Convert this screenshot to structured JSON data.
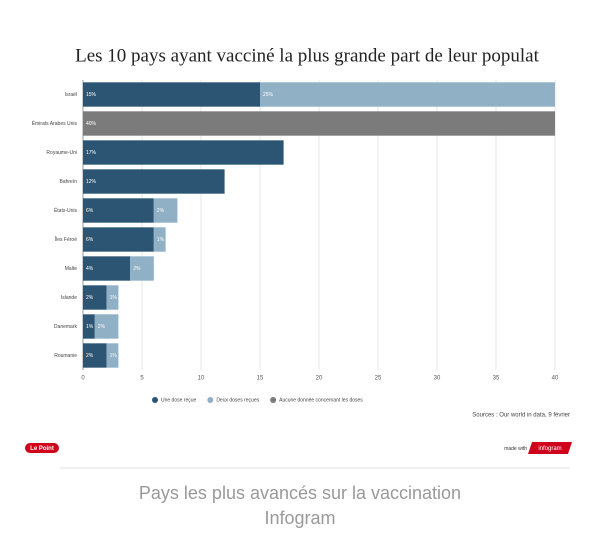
{
  "chart_data": {
    "type": "bar",
    "orientation": "horizontal",
    "stacked": true,
    "title": "Les 10 pays ayant vacciné la plus grande part de leur populat",
    "categories": [
      "Israël",
      "Émirats Arabes Unis",
      "Royaume-Uni",
      "Bahreïn",
      "États-Unis",
      "Îles Féroé",
      "Malte",
      "Islande",
      "Danemark",
      "Roumanie"
    ],
    "series": [
      {
        "name": "Une dose reçue",
        "color": "#2c5573",
        "values": [
          15,
          null,
          17,
          12,
          6,
          6,
          4,
          2,
          1,
          2
        ],
        "value_labels": [
          "15%",
          null,
          "17%",
          "12%",
          "6%",
          "6%",
          "4%",
          "2%",
          "1%",
          "2%"
        ]
      },
      {
        "name": "Deux doses reçues",
        "color": "#8fb0c5",
        "values": [
          25,
          null,
          null,
          null,
          2,
          1,
          2,
          1,
          2,
          1
        ],
        "value_labels": [
          "25%",
          null,
          null,
          null,
          "2%",
          "1%",
          "2%",
          "1%",
          "2%",
          "1%"
        ]
      },
      {
        "name": "Aucune donnée concernant les doses",
        "color": "#7b7b7b",
        "values": [
          null,
          40,
          null,
          null,
          null,
          null,
          null,
          null,
          null,
          null
        ],
        "value_labels": [
          null,
          "40%",
          null,
          null,
          null,
          null,
          null,
          null,
          null,
          null
        ]
      }
    ],
    "xlim": [
      0,
      40
    ],
    "xticks": [
      0,
      5,
      10,
      15,
      20,
      25,
      30,
      35,
      40
    ],
    "grid": true,
    "legend": "bottom",
    "source": "Sources : Our world in data, 9 février"
  },
  "footer": {
    "badge": "Le Point",
    "made_with": "made with",
    "brand": "infogram"
  },
  "caption": {
    "text": "Pays les plus avancés sur la vaccination",
    "sub": "Infogram"
  }
}
